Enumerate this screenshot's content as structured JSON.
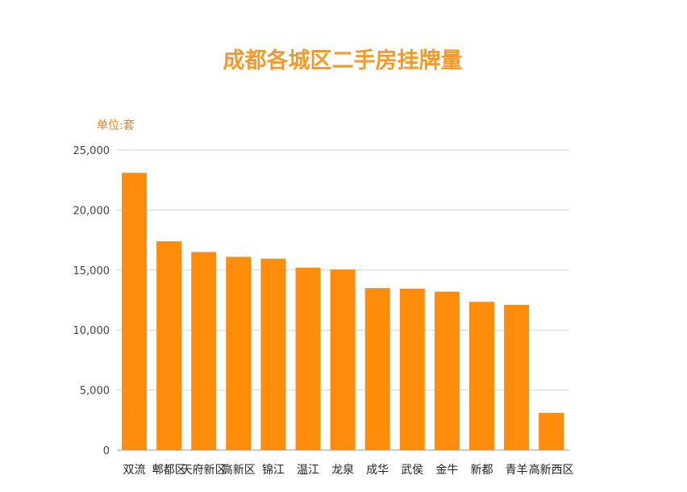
{
  "colors": {
    "bar": "#ff8c0a",
    "title": "#f39a2b",
    "unit_label": "#f07c0e",
    "tick_text": "#444444",
    "grid": "#d6d6d6",
    "axis": "#999999"
  },
  "chart_data": {
    "type": "bar",
    "title": "成都各城区二手房挂牌量",
    "unit_label": "单位:套",
    "xlabel": "",
    "ylabel": "",
    "ylim": [
      0,
      25000
    ],
    "yticks": [
      0,
      5000,
      10000,
      15000,
      20000,
      25000
    ],
    "ytick_labels": [
      "0",
      "5,000",
      "10,000",
      "15,000",
      "20,000",
      "25,000"
    ],
    "grid": true,
    "categories": [
      "双流",
      "郫都区",
      "天府新区",
      "高新区",
      "锦江",
      "温江",
      "龙泉",
      "成华",
      "武侯",
      "金牛",
      "新都",
      "青羊",
      "高新西区"
    ],
    "values": [
      23100,
      17400,
      16500,
      16100,
      15950,
      15200,
      15050,
      13500,
      13450,
      13200,
      12350,
      12100,
      3100
    ]
  }
}
